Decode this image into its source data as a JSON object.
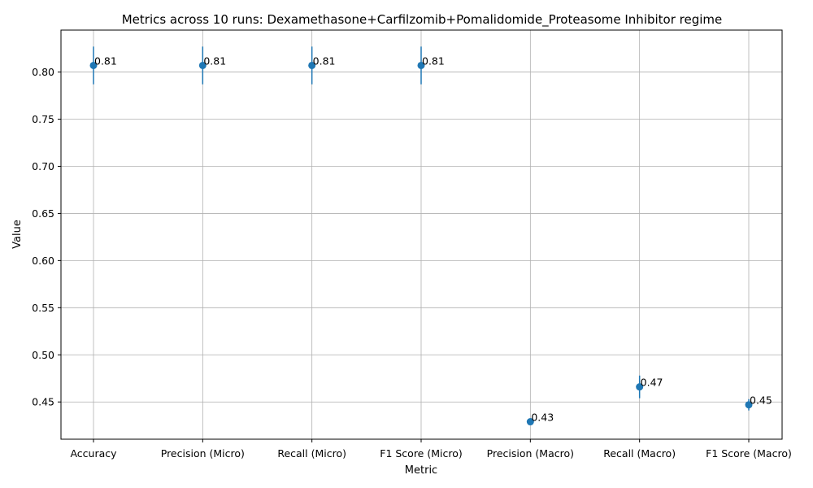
{
  "chart_data": {
    "type": "scatter",
    "title": "Metrics across 10 runs: Dexamethasone+Carfilzomib+Pomalidomide_Proteasome Inhibitor regime",
    "xlabel": "Metric",
    "ylabel": "Value",
    "categories": [
      "Accuracy",
      "Precision (Micro)",
      "Recall (Micro)",
      "F1 Score (Micro)",
      "Precision (Macro)",
      "Recall (Macro)",
      "F1 Score (Macro)"
    ],
    "values": [
      0.807,
      0.807,
      0.807,
      0.807,
      0.429,
      0.466,
      0.447
    ],
    "errors": [
      0.02,
      0.02,
      0.02,
      0.02,
      0.003,
      0.012,
      0.006
    ],
    "value_labels": [
      "0.81",
      "0.81",
      "0.81",
      "0.81",
      "0.43",
      "0.47",
      "0.45"
    ],
    "yticks": [
      "0.45",
      "0.50",
      "0.55",
      "0.60",
      "0.65",
      "0.70",
      "0.75",
      "0.80"
    ],
    "ylim": [
      0.4105,
      0.8445
    ],
    "grid": true,
    "colors": {
      "marker": "#1f77b4",
      "grid": "#b0b0b0",
      "axes": "#000000"
    }
  }
}
